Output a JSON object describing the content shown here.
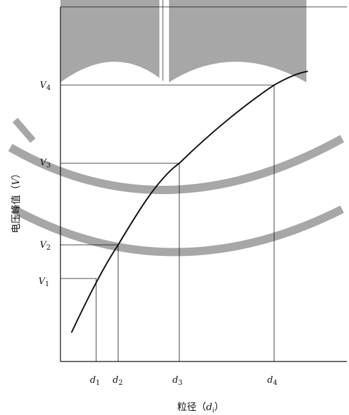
{
  "chart_data": {
    "type": "line",
    "xlabel": "粒径（d_i）",
    "ylabel": "电压峰值（V）",
    "xlabel_parts": {
      "text": "粒径（",
      "var": "d",
      "sub": "i",
      "close": "）"
    },
    "ylabel_parts": {
      "text": "电压峰值（",
      "var": "V",
      "close": "）"
    },
    "markers": [
      {
        "x_label": "d",
        "x_sub": "1",
        "y_label": "V",
        "y_sub": "1"
      },
      {
        "x_label": "d",
        "x_sub": "2",
        "y_label": "V",
        "y_sub": "2"
      },
      {
        "x_label": "d",
        "x_sub": "3",
        "y_label": "V",
        "y_sub": "3"
      },
      {
        "x_label": "d",
        "x_sub": "4",
        "y_label": "V",
        "y_sub": "4"
      }
    ],
    "curve": "concave increasing curve: peak voltage rises with particle diameter",
    "grid": false
  },
  "colors": {
    "line": "#111111",
    "watermark": "#9a9a9a"
  }
}
